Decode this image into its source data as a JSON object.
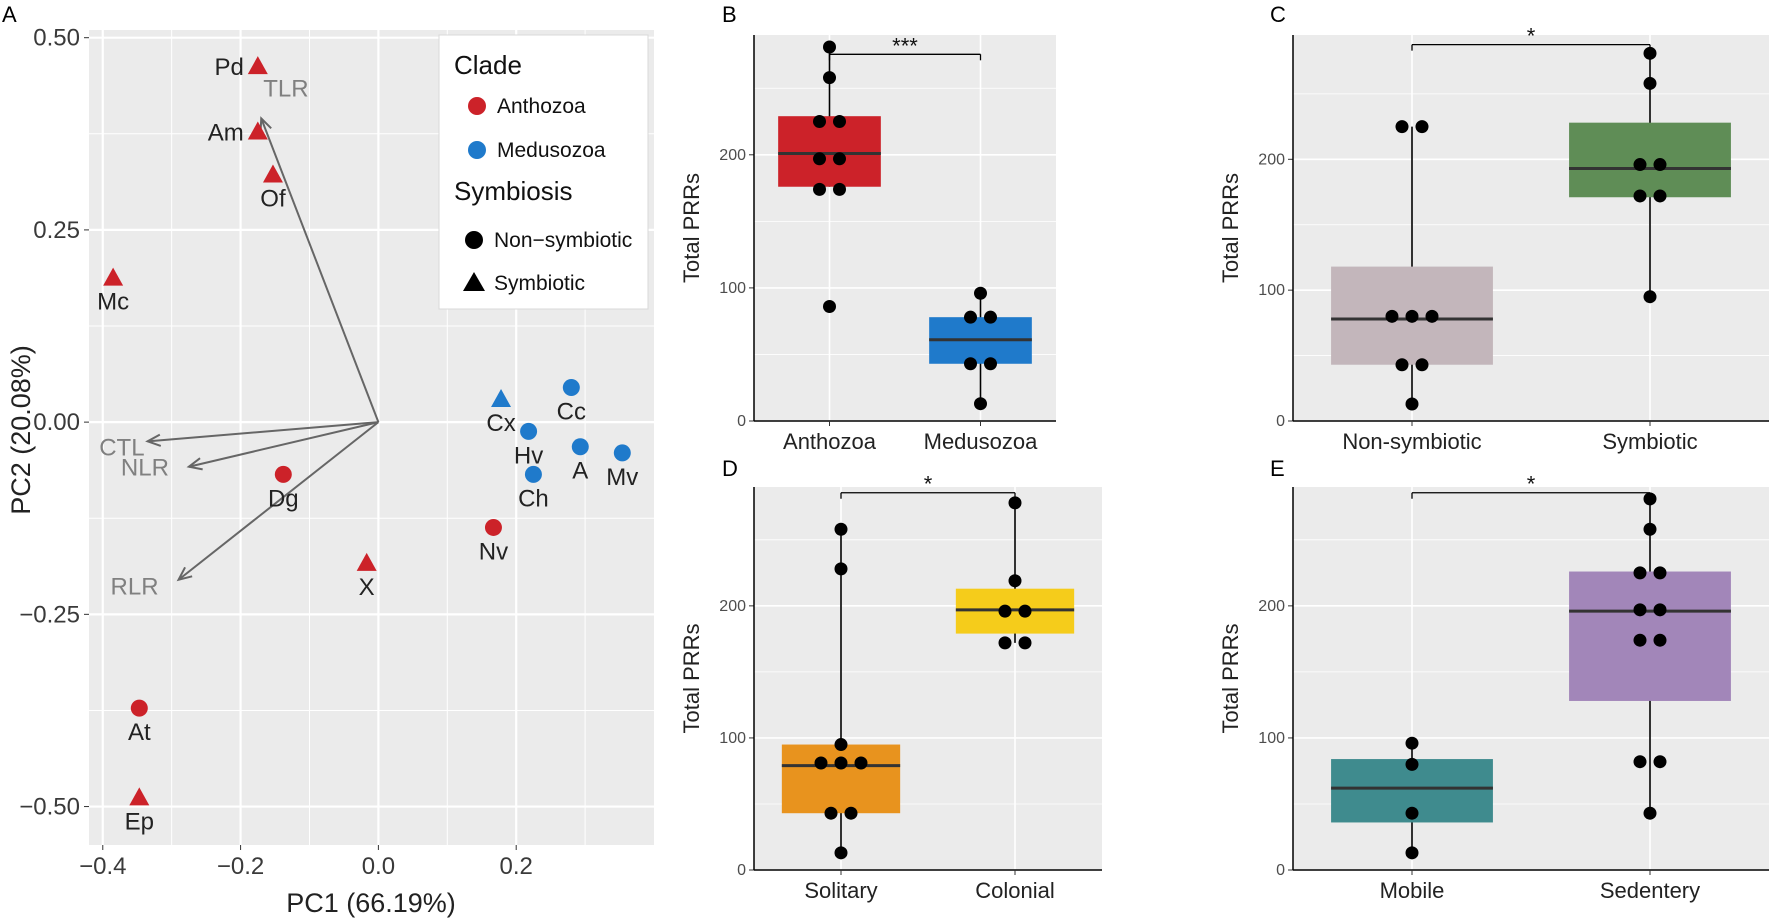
{
  "colors": {
    "panel_bg": "#ebebeb",
    "grid": "#ffffff",
    "anthozoa": "#cc2229",
    "medusozoa": "#1f7acb",
    "vector": "#666666",
    "vector_label": "#808080",
    "point_black": "#000000"
  },
  "chart_data": [
    {
      "panel": "A",
      "type": "scatter",
      "subtype": "pca-biplot",
      "xlabel": "PC1 (66.19%)",
      "ylabel": "PC2 (20.08%)",
      "xlim": [
        -0.42,
        0.4
      ],
      "ylim": [
        -0.55,
        0.51
      ],
      "xticks": [
        -0.4,
        -0.2,
        0.0,
        0.2
      ],
      "xtick_labels": [
        "−0.4",
        "−0.2",
        "0.0",
        "0.2"
      ],
      "yticks": [
        0.5,
        0.25,
        0.0,
        -0.25,
        -0.5
      ],
      "ytick_labels": [
        "0.50",
        "0.25",
        "0.00",
        "−0.25",
        "−0.50"
      ],
      "legend": {
        "position": "top-right",
        "clade_title": "Clade",
        "clade_items": [
          {
            "label": "Anthozoa",
            "color_key": "anthozoa"
          },
          {
            "label": "Medusozoa",
            "color_key": "medusozoa"
          }
        ],
        "symbiosis_title": "Symbiosis",
        "symbiosis_items": [
          {
            "label": "Non−symbiotic",
            "shape": "circle"
          },
          {
            "label": "Symbiotic",
            "shape": "triangle"
          }
        ]
      },
      "points": [
        {
          "label": "Pd",
          "x": -0.175,
          "y": 0.463,
          "clade": "Anthozoa",
          "symbiosis": "Symbiotic",
          "label_pos": "left"
        },
        {
          "label": "Am",
          "x": -0.175,
          "y": 0.378,
          "clade": "Anthozoa",
          "symbiosis": "Symbiotic",
          "label_pos": "left"
        },
        {
          "label": "Of",
          "x": -0.153,
          "y": 0.322,
          "clade": "Anthozoa",
          "symbiosis": "Symbiotic",
          "label_pos": "below"
        },
        {
          "label": "Mc",
          "x": -0.385,
          "y": 0.188,
          "clade": "Anthozoa",
          "symbiosis": "Symbiotic",
          "label_pos": "below"
        },
        {
          "label": "Dg",
          "x": -0.138,
          "y": -0.068,
          "clade": "Anthozoa",
          "symbiosis": "Non-symbiotic",
          "label_pos": "below"
        },
        {
          "label": "X",
          "x": -0.017,
          "y": -0.183,
          "clade": "Anthozoa",
          "symbiosis": "Symbiotic",
          "label_pos": "below"
        },
        {
          "label": "Nv",
          "x": 0.167,
          "y": -0.137,
          "clade": "Anthozoa",
          "symbiosis": "Non-symbiotic",
          "label_pos": "below"
        },
        {
          "label": "At",
          "x": -0.347,
          "y": -0.372,
          "clade": "Anthozoa",
          "symbiosis": "Non-symbiotic",
          "label_pos": "below"
        },
        {
          "label": "Ep",
          "x": -0.347,
          "y": -0.488,
          "clade": "Anthozoa",
          "symbiosis": "Symbiotic",
          "label_pos": "below"
        },
        {
          "label": "Cx",
          "x": 0.178,
          "y": 0.03,
          "clade": "Medusozoa",
          "symbiosis": "Symbiotic",
          "label_pos": "below"
        },
        {
          "label": "Cc",
          "x": 0.28,
          "y": 0.045,
          "clade": "Medusozoa",
          "symbiosis": "Non-symbiotic",
          "label_pos": "below"
        },
        {
          "label": "Hv",
          "x": 0.218,
          "y": -0.012,
          "clade": "Medusozoa",
          "symbiosis": "Non-symbiotic",
          "label_pos": "below"
        },
        {
          "label": "Ch",
          "x": 0.225,
          "y": -0.068,
          "clade": "Medusozoa",
          "symbiosis": "Non-symbiotic",
          "label_pos": "below"
        },
        {
          "label": "A",
          "x": 0.293,
          "y": -0.032,
          "clade": "Medusozoa",
          "symbiosis": "Non-symbiotic",
          "label_pos": "below"
        },
        {
          "label": "Mv",
          "x": 0.354,
          "y": -0.04,
          "clade": "Medusozoa",
          "symbiosis": "Non-symbiotic",
          "label_pos": "below"
        }
      ],
      "vectors": [
        {
          "label": "TLR",
          "x": -0.17,
          "y": 0.395
        },
        {
          "label": "CTL",
          "x": -0.335,
          "y": -0.025
        },
        {
          "label": "NLR",
          "x": -0.275,
          "y": -0.058
        },
        {
          "label": "RLR",
          "x": -0.29,
          "y": -0.205
        }
      ]
    },
    {
      "panel": "B",
      "type": "box",
      "ylabel": "Total PRRs",
      "ylim": [
        0,
        290
      ],
      "yticks": [
        0,
        100,
        200
      ],
      "categories": [
        "Anthozoa",
        "Medusozoa"
      ],
      "box_colors": [
        "#cc2229",
        "#1f7acb"
      ],
      "boxes": [
        {
          "q1": 176,
          "median": 201,
          "q3": 229,
          "whisker_low": 176,
          "whisker_high": 281
        },
        {
          "q1": 43,
          "median": 61,
          "q3": 78,
          "whisker_low": 13,
          "whisker_high": 96
        }
      ],
      "points": [
        [
          281,
          258,
          225,
          225,
          197,
          197,
          174,
          174,
          86
        ],
        [
          96,
          78,
          78,
          43,
          43,
          13
        ]
      ],
      "significance": "***"
    },
    {
      "panel": "C",
      "type": "box",
      "ylabel": "Total PRRs",
      "ylim": [
        0,
        295
      ],
      "yticks": [
        0,
        100,
        200
      ],
      "categories": [
        "Non-symbiotic",
        "Symbiotic"
      ],
      "box_colors": [
        "#c3b6bb",
        "#5f8d56"
      ],
      "boxes": [
        {
          "q1": 43,
          "median": 78,
          "q3": 118,
          "whisker_low": 13,
          "whisker_high": 225
        },
        {
          "q1": 171,
          "median": 193,
          "q3": 228,
          "whisker_low": 95,
          "whisker_high": 281
        }
      ],
      "points": [
        [
          225,
          225,
          80,
          80,
          80,
          43,
          43,
          13
        ],
        [
          281,
          258,
          196,
          196,
          172,
          172,
          95
        ]
      ],
      "significance": "*"
    },
    {
      "panel": "D",
      "type": "box",
      "ylabel": "Total PRRs",
      "ylim": [
        0,
        290
      ],
      "yticks": [
        0,
        100,
        200
      ],
      "categories": [
        "Solitary",
        "Colonial"
      ],
      "box_colors": [
        "#e8931e",
        "#f5cc1b"
      ],
      "boxes": [
        {
          "q1": 43,
          "median": 79,
          "q3": 95,
          "whisker_low": 13,
          "whisker_high": 258
        },
        {
          "q1": 179,
          "median": 197,
          "q3": 213,
          "whisker_low": 172,
          "whisker_high": 278
        }
      ],
      "points": [
        [
          258,
          228,
          95,
          81,
          81,
          81,
          43,
          43,
          13
        ],
        [
          278,
          219,
          196,
          196,
          172,
          172
        ]
      ],
      "significance": "*"
    },
    {
      "panel": "E",
      "type": "box",
      "ylabel": "Total PRRs",
      "ylim": [
        0,
        290
      ],
      "yticks": [
        0,
        100,
        200
      ],
      "categories": [
        "Mobile",
        "Sedentery"
      ],
      "box_colors": [
        "#3f8b8e",
        "#a286b9"
      ],
      "boxes": [
        {
          "q1": 36,
          "median": 62,
          "q3": 84,
          "whisker_low": 13,
          "whisker_high": 96
        },
        {
          "q1": 128,
          "median": 196,
          "q3": 226,
          "whisker_low": 43,
          "whisker_high": 281
        }
      ],
      "points": [
        [
          96,
          80,
          43,
          13
        ],
        [
          281,
          258,
          225,
          225,
          197,
          197,
          174,
          174,
          82,
          82,
          43
        ]
      ],
      "significance": "*"
    }
  ]
}
